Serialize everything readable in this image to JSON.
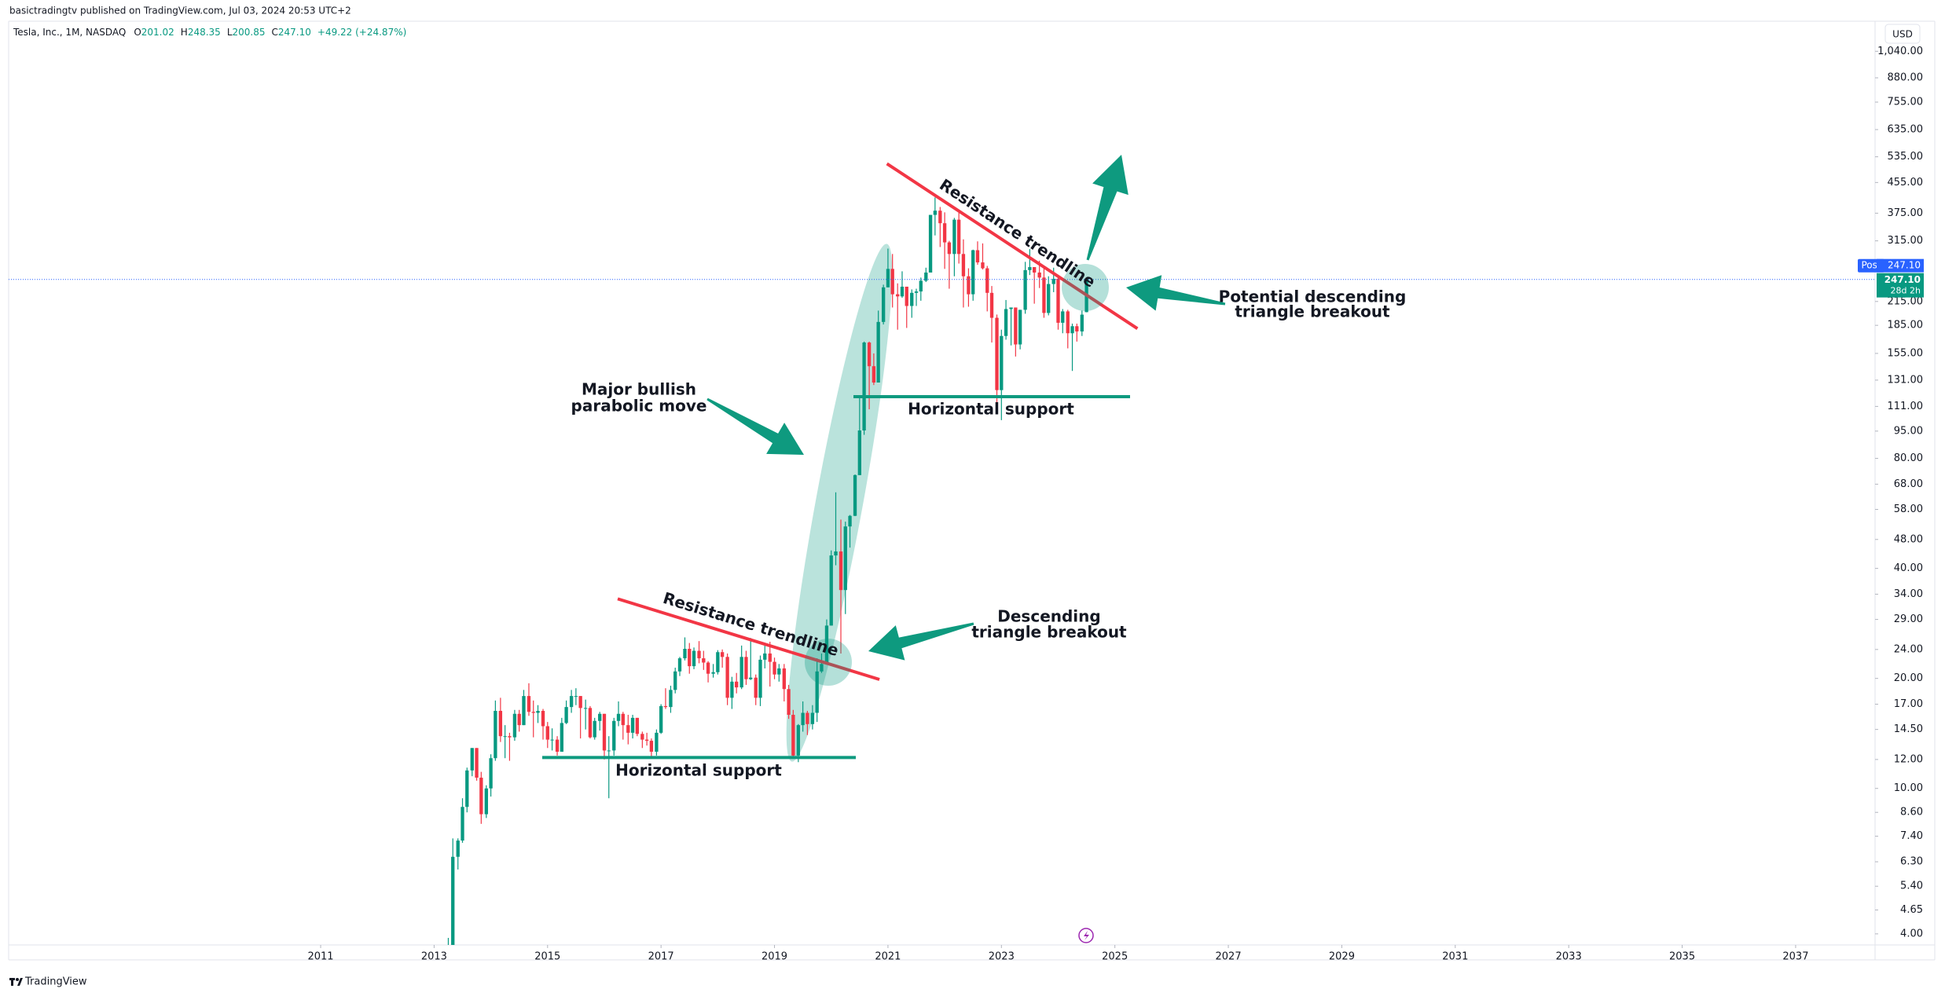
{
  "header": {
    "published": "basictradingtv published on TradingView.com, Jul 03, 2024 20:53 UTC+2",
    "brand": "TradingView"
  },
  "chart_data": {
    "type": "candlestick",
    "title": "Tesla, Inc., 1M, NASDAQ",
    "legend": [
      {
        "label": "O",
        "value": "201.02"
      },
      {
        "label": "H",
        "value": "248.35"
      },
      {
        "label": "L",
        "value": "200.85"
      },
      {
        "label": "C",
        "value": "247.10"
      }
    ],
    "change": "+49.22 (+24.87%)",
    "currency": "USD",
    "session_tag": "Post",
    "countdown": "28d 2h",
    "last_price": {
      "value": 247.1,
      "label": "247.10"
    },
    "up_color": "#089981",
    "down_color": "#f23645",
    "price_line_color": "#2962ff",
    "log_scale": true,
    "grid": false,
    "xlim": [
      2005.5,
      2038.4
    ],
    "xticks": [
      2011,
      2013,
      2015,
      2017,
      2019,
      2021,
      2023,
      2025,
      2027,
      2029,
      2031,
      2033,
      2035,
      2037
    ],
    "ylim": [
      3.73,
      1257
    ],
    "yticks": [
      {
        "value": 4,
        "label": "4.00"
      },
      {
        "value": 4.65,
        "label": "4.65"
      },
      {
        "value": 5.4,
        "label": "5.40"
      },
      {
        "value": 6.3,
        "label": "6.30"
      },
      {
        "value": 7.4,
        "label": "7.40"
      },
      {
        "value": 8.6,
        "label": "8.60"
      },
      {
        "value": 10,
        "label": "10.00"
      },
      {
        "value": 12,
        "label": "12.00"
      },
      {
        "value": 14.5,
        "label": "14.50"
      },
      {
        "value": 17,
        "label": "17.00"
      },
      {
        "value": 20,
        "label": "20.00"
      },
      {
        "value": 24,
        "label": "24.00"
      },
      {
        "value": 29,
        "label": "29.00"
      },
      {
        "value": 34,
        "label": "34.00"
      },
      {
        "value": 40,
        "label": "40.00"
      },
      {
        "value": 48,
        "label": "48.00"
      },
      {
        "value": 58,
        "label": "58.00"
      },
      {
        "value": 68,
        "label": "68.00"
      },
      {
        "value": 80,
        "label": "80.00"
      },
      {
        "value": 95,
        "label": "95.00"
      },
      {
        "value": 111,
        "label": "111.00"
      },
      {
        "value": 131,
        "label": "131.00"
      },
      {
        "value": 155,
        "label": "155.00"
      },
      {
        "value": 185,
        "label": "185.00"
      },
      {
        "value": 215,
        "label": "215.00"
      },
      {
        "value": 315,
        "label": "315.00"
      },
      {
        "value": 375,
        "label": "375.00"
      },
      {
        "value": 455,
        "label": "455.00"
      },
      {
        "value": 535,
        "label": "535.00"
      },
      {
        "value": 635,
        "label": "635.00"
      },
      {
        "value": 755,
        "label": "755.00"
      },
      {
        "value": 880,
        "label": "880.00"
      },
      {
        "value": 1040,
        "label": "1,040.00"
      }
    ],
    "x": [
      2013.25,
      2013.33,
      2013.42,
      2013.5,
      2013.58,
      2013.67,
      2013.75,
      2013.83,
      2013.92,
      2014,
      2014.08,
      2014.17,
      2014.25,
      2014.33,
      2014.42,
      2014.5,
      2014.58,
      2014.67,
      2014.75,
      2014.83,
      2014.92,
      2015,
      2015.08,
      2015.17,
      2015.25,
      2015.33,
      2015.42,
      2015.5,
      2015.58,
      2015.67,
      2015.75,
      2015.83,
      2015.92,
      2016,
      2016.08,
      2016.17,
      2016.25,
      2016.33,
      2016.42,
      2016.5,
      2016.58,
      2016.67,
      2016.75,
      2016.83,
      2016.92,
      2017,
      2017.08,
      2017.17,
      2017.25,
      2017.33,
      2017.42,
      2017.5,
      2017.58,
      2017.67,
      2017.75,
      2017.83,
      2017.92,
      2018,
      2018.08,
      2018.17,
      2018.25,
      2018.33,
      2018.42,
      2018.5,
      2018.58,
      2018.67,
      2018.75,
      2018.83,
      2018.92,
      2019,
      2019.08,
      2019.17,
      2019.25,
      2019.33,
      2019.42,
      2019.5,
      2019.58,
      2019.67,
      2019.75,
      2019.83,
      2019.92,
      2020,
      2020.08,
      2020.17,
      2020.25,
      2020.33,
      2020.42,
      2020.5,
      2020.58,
      2020.67,
      2020.75,
      2020.83,
      2020.92,
      2021,
      2021.08,
      2021.17,
      2021.25,
      2021.33,
      2021.42,
      2021.5,
      2021.58,
      2021.67,
      2021.75,
      2021.83,
      2021.92,
      2022,
      2022.08,
      2022.17,
      2022.25,
      2022.33,
      2022.42,
      2022.5,
      2022.58,
      2022.67,
      2022.75,
      2022.83,
      2022.92,
      2023,
      2023.08,
      2023.17,
      2023.25,
      2023.33,
      2023.42,
      2023.5,
      2023.58,
      2023.67,
      2023.75,
      2023.83,
      2023.92,
      2024,
      2024.08,
      2024.17,
      2024.25,
      2024.33,
      2024.42,
      2024.5
    ],
    "open": [
      2.9,
      3.6,
      6.5,
      7.2,
      8.9,
      11.2,
      12.9,
      10.7,
      8.5,
      10.0,
      12.1,
      16.3,
      13.9,
      13.9,
      13.8,
      16.0,
      14.9,
      17.9,
      16.2,
      16.1,
      16.3,
      14.8,
      13.6,
      13.6,
      12.6,
      15.1,
      16.7,
      17.9,
      17.9,
      16.6,
      16.6,
      13.8,
      15.3,
      16.0,
      12.7,
      12.7,
      15.3,
      16.0,
      14.9,
      14.2,
      15.6,
      14.1,
      13.6,
      13.5,
      12.6,
      14.2,
      16.8,
      16.7,
      18.6,
      20.9,
      22.7,
      24.1,
      21.6,
      23.8,
      22.7,
      22.1,
      20.6,
      20.8,
      23.6,
      22.9,
      17.7,
      19.6,
      18.9,
      22.9,
      19.9,
      20.1,
      17.7,
      22.5,
      23.4,
      22.2,
      20.5,
      21.3,
      18.7,
      15.9,
      12.3,
      14.9,
      16.1,
      15.0,
      16.1,
      20.9,
      21.9,
      27.9,
      43.4,
      44.5,
      34.9,
      52.1,
      55.7,
      72.0,
      95.4,
      166,
      143,
      129,
      189,
      235,
      264,
      225,
      222,
      236,
      209,
      227,
      229,
      245,
      258,
      371,
      381,
      352,
      312,
      290,
      360,
      290,
      252,
      225,
      297,
      275,
      265,
      227,
      194,
      123,
      173,
      205,
      207,
      164,
      204,
      262,
      267,
      258,
      250,
      200,
      240,
      248,
      188,
      202,
      176,
      184,
      178,
      201.02
    ],
    "high": [
      3.9,
      7.3,
      7.3,
      9.4,
      11.4,
      12.9,
      12.9,
      11.1,
      10.2,
      12.4,
      17.4,
      17.7,
      14.9,
      14.2,
      16.4,
      16.4,
      18.6,
      19.4,
      17.4,
      16.9,
      16.5,
      15.2,
      14.6,
      13.9,
      15.6,
      17.4,
      18.6,
      18.8,
      17.9,
      17.5,
      16.8,
      15.6,
      16.2,
      16.0,
      13.9,
      15.6,
      17.3,
      16.2,
      15.9,
      15.9,
      15.6,
      14.3,
      14.2,
      13.7,
      14.5,
      17.0,
      18.8,
      19.1,
      21.4,
      22.9,
      25.9,
      25.0,
      24.3,
      25.3,
      23.8,
      22.3,
      21.9,
      23.9,
      24.0,
      23.4,
      20.2,
      20.7,
      24.6,
      23.8,
      25.8,
      20.5,
      23.1,
      24.6,
      25.2,
      22.8,
      21.9,
      21.9,
      19.2,
      16.4,
      15.0,
      17.3,
      16.3,
      16.9,
      22.7,
      23.4,
      29.0,
      44.8,
      64.6,
      54.4,
      53.7,
      56.0,
      72.3,
      119,
      167,
      167,
      155,
      203,
      239,
      300,
      290,
      241,
      260,
      236,
      232,
      233,
      250,
      266,
      371,
      414,
      390,
      377,
      315,
      364,
      384,
      318,
      265,
      298,
      314,
      310,
      269,
      237,
      198,
      180,
      217,
      207,
      207,
      204,
      276,
      299,
      267,
      278,
      269,
      252,
      266,
      251,
      205,
      204,
      187,
      187,
      203,
      248.35
    ],
    "low": [
      2.8,
      3.6,
      6.0,
      7.1,
      8.6,
      10.8,
      10.5,
      8.0,
      8.3,
      9.5,
      11.9,
      13.4,
      12.1,
      11.9,
      13.5,
      14.3,
      14.9,
      15.8,
      13.8,
      15.1,
      13.6,
      12.9,
      12.7,
      12.3,
      12.6,
      15.0,
      16.1,
      16.9,
      13.7,
      14.5,
      13.7,
      13.6,
      14.4,
      12.0,
      9.4,
      12.3,
      14.8,
      13.6,
      13.2,
      13.7,
      13.9,
      12.9,
      13.1,
      12.2,
      12.3,
      14.1,
      16.5,
      16.1,
      18.2,
      20.3,
      22.4,
      20.6,
      21.2,
      22.0,
      21.1,
      19.5,
      20.1,
      20.5,
      21.4,
      16.9,
      16.5,
      18.2,
      18.7,
      19.2,
      19.8,
      16.9,
      16.8,
      21.3,
      19.0,
      19.9,
      19.6,
      17.3,
      15.5,
      12.2,
      11.8,
      14.3,
      14.0,
      14.5,
      15.2,
      20.7,
      21.8,
      27.9,
      40.8,
      23.4,
      30.0,
      45.6,
      55.6,
      72.0,
      92.8,
      109,
      127,
      130,
      186,
      235,
      207,
      180,
      220,
      182,
      194,
      209,
      216,
      243,
      259,
      326,
      303,
      264,
      233,
      252,
      273,
      207,
      208,
      216,
      271,
      263,
      202,
      166,
      108,
      101.8,
      169,
      163,
      152,
      159,
      199,
      254,
      212,
      234,
      194,
      197,
      228,
      180,
      176,
      160,
      138.8,
      167,
      173,
      200.85
    ],
    "close": [
      3.6,
      6.5,
      7.2,
      8.9,
      11.2,
      12.9,
      10.7,
      8.5,
      10.0,
      12.1,
      16.3,
      13.9,
      13.9,
      13.8,
      16.0,
      14.9,
      17.9,
      16.2,
      16.1,
      16.3,
      14.8,
      13.6,
      13.6,
      12.6,
      15.1,
      16.7,
      17.9,
      17.9,
      16.6,
      16.6,
      13.8,
      15.3,
      16.0,
      12.7,
      12.7,
      15.3,
      16.0,
      14.9,
      14.2,
      15.6,
      14.1,
      13.6,
      13.5,
      12.6,
      14.2,
      16.8,
      16.7,
      18.6,
      20.9,
      22.7,
      24.1,
      21.6,
      23.8,
      22.7,
      22.1,
      20.6,
      20.8,
      23.6,
      22.9,
      17.7,
      19.6,
      18.9,
      22.9,
      19.9,
      20.1,
      17.7,
      22.5,
      23.4,
      22.2,
      20.5,
      21.3,
      18.7,
      15.9,
      12.3,
      14.9,
      16.1,
      15.0,
      16.1,
      20.9,
      21.9,
      27.9,
      43.4,
      44.5,
      34.9,
      52.1,
      55.7,
      72.0,
      95.4,
      166,
      143,
      129,
      189,
      235,
      264,
      225,
      222,
      236,
      209,
      227,
      229,
      245,
      258,
      371,
      381,
      352,
      312,
      290,
      360,
      290,
      252,
      225,
      297,
      275,
      265,
      227,
      194,
      123,
      173,
      205,
      207,
      164,
      204,
      262,
      267,
      258,
      250,
      200,
      240,
      248,
      188,
      202,
      176,
      184,
      178,
      197.9,
      247.1
    ],
    "annotations": {
      "parabolic": [
        "Major bullish",
        "parabolic move"
      ],
      "resistance_top": "Resistance trendline",
      "resistance_bottom": "Resistance trendline",
      "support_top": "Horizontal support",
      "support_bottom": "Horizontal support",
      "breakout_potential": [
        "Potential descending",
        "triangle breakout"
      ],
      "breakout": [
        "Descending",
        "triangle breakout"
      ]
    }
  }
}
